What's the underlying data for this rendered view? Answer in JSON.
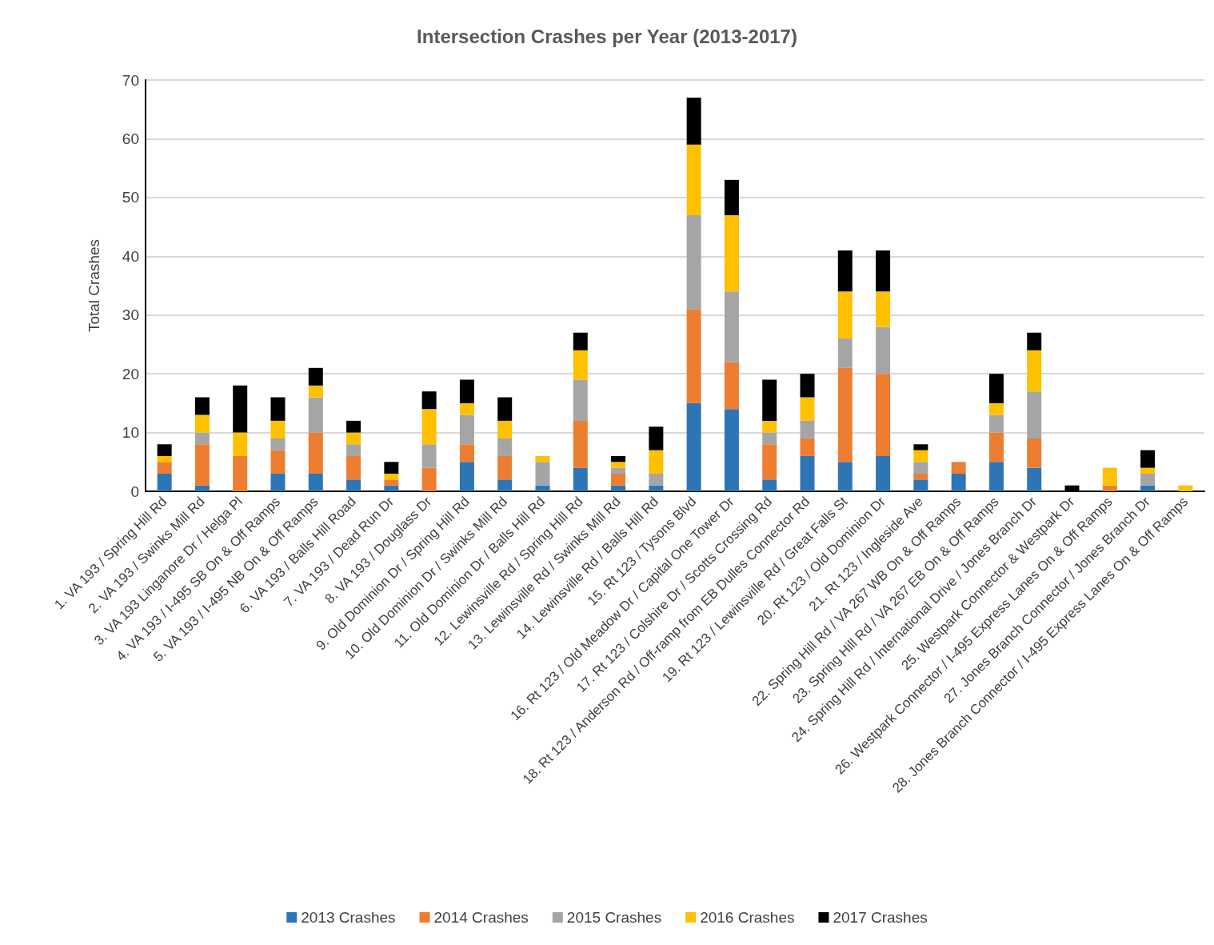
{
  "chart_data": {
    "type": "bar",
    "title": "Intersection Crashes per Year (2013-2017)",
    "ylabel": "Total Crashes",
    "categories": [
      "1. VA 193 / Spring Hill Rd",
      "2. VA 193 / Swinks Mill Rd",
      "3. VA 193 Linganore Dr / Helga Pl",
      "4. VA 193 / I-495 SB On & Off Ramps",
      "5. VA 193 / I-495 NB On & Off Ramps",
      "6. VA 193 / Balls Hill Road",
      "7. VA 193 / Dead Run Dr",
      "8. VA 193 / Douglass Dr",
      "9. Old Dominion Dr / Spring Hill Rd",
      "10. Old Dominion Dr / Swinks Mill Rd",
      "11. Old Dominion Dr / Balls Hill Rd",
      "12. Lewinsville Rd / Spring Hill Rd",
      "13. Lewinsville Rd / Swinks Mill Rd",
      "14. Lewinsville Rd / Balls Hill Rd",
      "15. Rt 123 / Tysons Blvd",
      "16. Rt 123 / Old Meadow Dr / Capital One Tower Dr",
      "17. Rt 123 / Colshire Dr / Scotts Crossing Rd",
      "18. Rt 123 / Anderson Rd / Off-ramp from EB Dulles Connector Rd",
      "19. Rt 123 / Lewinsville Rd / Great Falls St",
      "20. Rt 123 / Old Dominion Dr",
      "21. Rt 123 / Ingleside Ave",
      "22. Spring Hill Rd / VA 267 WB On & Off Ramps",
      "23. Spring Hill Rd / VA 267 EB On & Off Ramps",
      "24. Spring Hill Rd / International Drive / Jones Branch Dr",
      "25. Westpark Connector & Westpark Dr",
      "26. Westpark Connector / I-495 Express Lanes On & Off Ramps",
      "27. Jones Branch Connector / Jones Branch Dr",
      "28. Jones Branch Connector / I-495 Express Lanes On & Off Ramps"
    ],
    "stacked": true,
    "series": [
      {
        "name": "2013 Crashes",
        "color": "#2e75b6",
        "values": [
          3,
          1,
          0,
          3,
          3,
          2,
          1,
          0,
          5,
          2,
          1,
          4,
          1,
          1,
          15,
          14,
          2,
          6,
          5,
          6,
          2,
          3,
          5,
          4,
          0,
          0,
          1,
          0
        ]
      },
      {
        "name": "2014 Crashes",
        "color": "#ed7d31",
        "values": [
          2,
          7,
          6,
          4,
          7,
          4,
          1,
          4,
          3,
          4,
          0,
          8,
          2,
          0,
          16,
          8,
          6,
          3,
          16,
          14,
          1,
          2,
          5,
          5,
          0,
          1,
          0,
          0
        ]
      },
      {
        "name": "2015 Crashes",
        "color": "#a5a5a5",
        "values": [
          0,
          2,
          0,
          2,
          6,
          2,
          0,
          4,
          5,
          3,
          4,
          7,
          1,
          2,
          16,
          12,
          2,
          3,
          5,
          8,
          2,
          0,
          3,
          8,
          0,
          0,
          2,
          0
        ]
      },
      {
        "name": "2016 Crashes",
        "color": "#ffc000",
        "values": [
          1,
          3,
          4,
          3,
          2,
          2,
          1,
          6,
          2,
          3,
          1,
          5,
          1,
          4,
          12,
          13,
          2,
          4,
          8,
          6,
          2,
          0,
          2,
          7,
          0,
          3,
          1,
          1
        ]
      },
      {
        "name": "2017 Crashes",
        "color": "#000000",
        "values": [
          2,
          3,
          8,
          4,
          3,
          2,
          2,
          3,
          4,
          4,
          0,
          3,
          1,
          4,
          8,
          6,
          7,
          4,
          7,
          7,
          1,
          0,
          5,
          3,
          1,
          0,
          3,
          0
        ]
      }
    ],
    "ylim": [
      0,
      70
    ],
    "yticks": [
      0,
      10,
      20,
      30,
      40,
      50,
      60,
      70
    ],
    "grid": "y",
    "legend": "bottom"
  }
}
